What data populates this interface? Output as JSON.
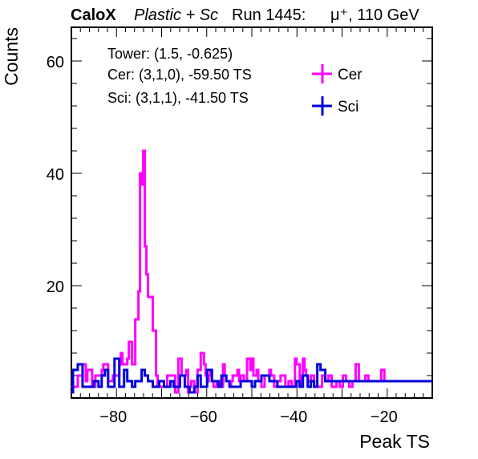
{
  "header": {
    "brand": "CaloX",
    "subtitle": "Plastic + Sc",
    "run": "Run 1445:",
    "beam": "μ⁺, 110 GeV"
  },
  "info": {
    "tower": "Tower: (1.5, -0.625)",
    "cer": "Cer: (3,1,0), -59.50 TS",
    "sci": "Sci: (3,1,1), -41.50 TS"
  },
  "chart_data": {
    "type": "line",
    "xlabel": "Peak TS",
    "ylabel": "Counts",
    "xlim": [
      -90,
      -10
    ],
    "ylim": [
      0,
      66
    ],
    "x_ticks": [
      -80,
      -60,
      -40,
      -20
    ],
    "y_ticks": [
      20,
      40,
      60
    ],
    "grid": false,
    "legend_position": "top-right",
    "bin_edges_start": -90,
    "bin_width": 1,
    "series": [
      {
        "name": "Cer",
        "color": "#ff00ff",
        "values": [
          2,
          2,
          2,
          2,
          4,
          4,
          4,
          6,
          6,
          3,
          5,
          5,
          5,
          2,
          2,
          4,
          4,
          4,
          4,
          5,
          6,
          6,
          6,
          3,
          3,
          3,
          4,
          4,
          4,
          4,
          6,
          8,
          6,
          6,
          6,
          7,
          10,
          10,
          6,
          6,
          14,
          14,
          19,
          40,
          38,
          44,
          27,
          22,
          18,
          18,
          18,
          12,
          12,
          4,
          2,
          2,
          2,
          2,
          2,
          2,
          4,
          4,
          4,
          4,
          4,
          1,
          1,
          7,
          7,
          4,
          4,
          4,
          5,
          1,
          2,
          3,
          3,
          1,
          1,
          5,
          5,
          8,
          8,
          6,
          4,
          3,
          4,
          5,
          3,
          2,
          2,
          3,
          3,
          2,
          2,
          6,
          4,
          3,
          3,
          2,
          3,
          4,
          4,
          4,
          5,
          3,
          4,
          4,
          3,
          3,
          7,
          7,
          5,
          7,
          4,
          4,
          5,
          3,
          3,
          2,
          2,
          4,
          4,
          4,
          5,
          4,
          4,
          2,
          2,
          3,
          3,
          4,
          4,
          4,
          2,
          2,
          3,
          3,
          2,
          2,
          7,
          6,
          6,
          2,
          4,
          7,
          5,
          4,
          3,
          3,
          4,
          4,
          2,
          2,
          2,
          2,
          2,
          4,
          4,
          3,
          3,
          4,
          4,
          2,
          2,
          2,
          3,
          3,
          2,
          2,
          4,
          4,
          3,
          3,
          2,
          2,
          3,
          3,
          6,
          6,
          3,
          3,
          3,
          3,
          4,
          4,
          3,
          3,
          3,
          3,
          3,
          3,
          3,
          3,
          5,
          5,
          3,
          3,
          3,
          3,
          3,
          3,
          3,
          3,
          3,
          3,
          3,
          3,
          3,
          3,
          3,
          3,
          3,
          3,
          3,
          3,
          3,
          3,
          3,
          3,
          3,
          3,
          3,
          3,
          3,
          3
        ]
      },
      {
        "name": "Sci",
        "color": "#0000dd",
        "values": [
          1,
          5,
          5,
          5,
          6,
          6,
          6,
          2,
          2,
          2,
          2,
          2,
          2,
          2,
          3,
          3,
          3,
          2,
          2,
          4,
          4,
          5,
          5,
          2,
          2,
          2,
          2,
          7,
          7,
          7,
          2,
          2,
          2,
          5,
          5,
          3,
          3,
          3,
          2,
          2,
          3,
          3,
          3,
          3,
          5,
          5,
          4,
          4,
          3,
          3,
          3,
          2,
          2,
          2,
          2,
          3,
          3,
          3,
          2,
          2,
          2,
          2,
          3,
          3,
          2,
          2,
          2,
          2,
          4,
          4,
          4,
          2,
          2,
          2,
          1,
          1,
          1,
          2,
          2,
          4,
          4,
          2,
          2,
          2,
          2,
          5,
          5,
          5,
          3,
          3,
          3,
          3,
          2,
          2,
          4,
          4,
          4,
          3,
          3,
          2,
          2,
          2,
          2,
          2,
          2,
          2,
          3,
          3,
          3,
          3,
          3,
          3,
          3,
          2,
          2,
          3,
          3,
          3,
          3,
          4,
          4,
          4,
          4,
          4,
          3,
          3,
          3,
          3,
          3,
          2,
          2,
          2,
          2,
          2,
          2,
          2,
          2,
          2,
          2,
          2,
          2,
          3,
          3,
          2,
          2,
          4,
          4,
          4,
          2,
          2,
          3,
          3,
          2,
          2,
          6,
          6,
          5,
          5,
          5,
          3,
          3,
          3,
          3,
          3,
          3,
          3,
          3,
          3,
          3,
          3,
          3,
          3,
          3,
          3,
          3,
          3,
          3,
          3,
          3,
          3,
          3,
          3,
          3,
          3,
          3,
          3,
          3,
          3,
          3,
          3,
          3,
          3,
          3,
          3,
          3,
          3,
          3,
          3,
          3,
          3,
          3,
          3,
          3,
          3,
          3,
          3,
          3,
          3,
          3,
          3,
          3,
          3,
          3,
          3,
          3,
          3,
          3,
          3,
          3,
          3,
          3,
          3,
          3,
          3,
          3,
          3
        ]
      }
    ]
  }
}
